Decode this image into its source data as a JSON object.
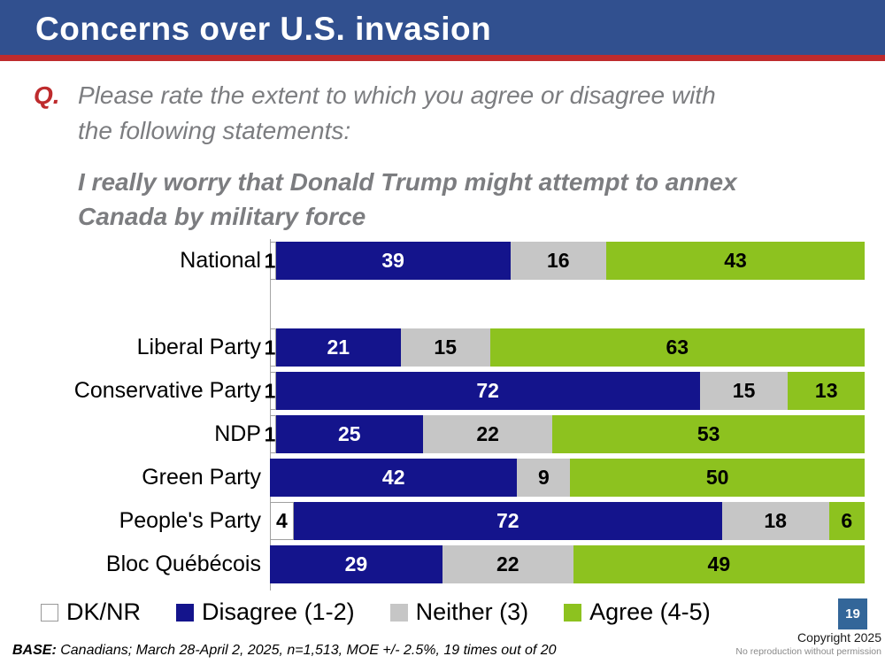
{
  "header": {
    "title": "Concerns over U.S. invasion"
  },
  "question": {
    "prefix": "Q.",
    "text": "Please rate the extent to which you agree or disagree with the following statements:",
    "statement": "I really worry that Donald Trump might attempt to annex Canada by military force"
  },
  "chart_data": {
    "type": "bar",
    "orientation": "horizontal",
    "stacked": true,
    "grid": false,
    "legend_position": "bottom",
    "xlim": [
      0,
      100
    ],
    "categories": [
      "National",
      "Liberal Party",
      "Conservative Party",
      "NDP",
      "Green Party",
      "People's Party",
      "Bloc Québécois"
    ],
    "series": [
      {
        "name": "DK/NR",
        "color": "#FFFFFF",
        "label_color": "#000000",
        "values": [
          1,
          1,
          1,
          1,
          0,
          4,
          0
        ]
      },
      {
        "name": "Disagree (1-2)",
        "color": "#14148C",
        "label_color": "#FFFFFF",
        "values": [
          39,
          21,
          72,
          25,
          42,
          72,
          29
        ]
      },
      {
        "name": "Neither (3)",
        "color": "#C6C6C6",
        "label_color": "#000000",
        "values": [
          16,
          15,
          15,
          22,
          9,
          18,
          22
        ]
      },
      {
        "name": "Agree (4-5)",
        "color": "#8DC21F",
        "label_color": "#000000",
        "values": [
          43,
          63,
          13,
          53,
          50,
          6,
          49
        ]
      }
    ]
  },
  "footer": {
    "base_label": "BASE:",
    "base_text": " Canadians; March 28-April 2, 2025, n=1,513, MOE +/- 2.5%, 19 times out of 20",
    "copyright": "Copyright 2025",
    "no_reproduction": "No reproduction without permission",
    "page_number": "19"
  },
  "colors": {
    "header_bg": "#31508F",
    "header_rule": "#BE2B2D",
    "question_text": "#7C7D80",
    "axis_line": "#A6A6A6",
    "badge_bg": "#336699"
  }
}
